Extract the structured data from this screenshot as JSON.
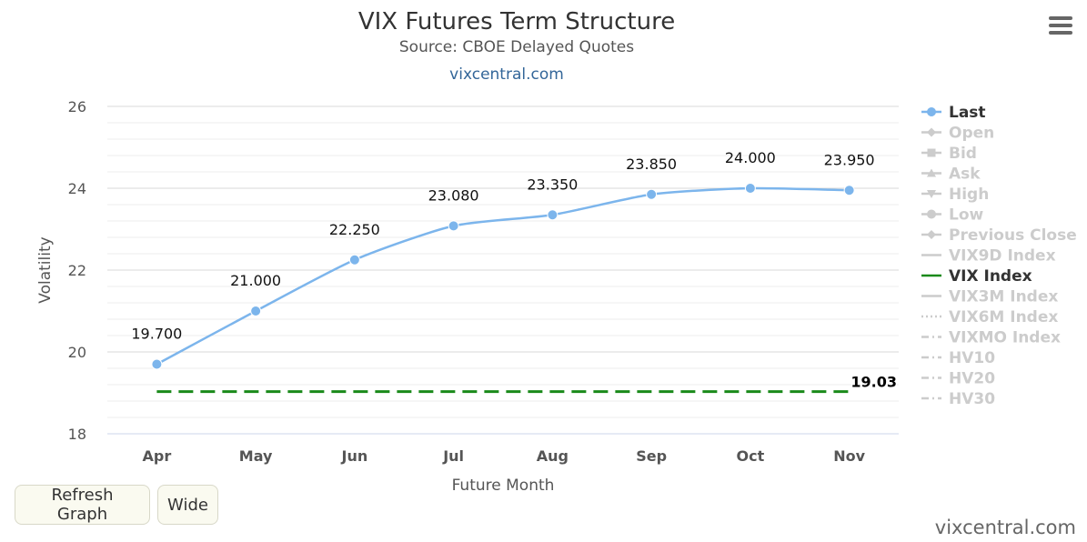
{
  "header": {
    "title": "VIX Futures Term Structure",
    "subtitle": "Source: CBOE Delayed Quotes",
    "link": "vixcentral.com"
  },
  "buttons": {
    "refresh": "Refresh Graph",
    "wide": "Wide"
  },
  "watermark": "vixcentral.com",
  "chart_data": {
    "type": "line",
    "xlabel": "Future Month",
    "ylabel": "Volatility",
    "categories": [
      "Apr",
      "May",
      "Jun",
      "Jul",
      "Aug",
      "Sep",
      "Oct",
      "Nov"
    ],
    "ylim": [
      18,
      26
    ],
    "yticks": [
      18,
      20,
      22,
      24,
      26
    ],
    "grid": true,
    "legend_position": "right",
    "series": [
      {
        "name": "Last",
        "color": "#7cb5ec",
        "values": [
          19.7,
          21.0,
          22.25,
          23.08,
          23.35,
          23.85,
          24.0,
          23.95
        ],
        "data_labels": [
          "19.700",
          "21.000",
          "22.250",
          "23.080",
          "23.350",
          "23.850",
          "24.000",
          "23.950"
        ]
      },
      {
        "name": "VIX Index",
        "color": "#1a8a1a",
        "value": 19.03,
        "data_label": "19.03"
      }
    ],
    "legend": [
      {
        "name": "Last",
        "active": true,
        "marker": "circle",
        "line": "solid"
      },
      {
        "name": "Open",
        "active": false,
        "marker": "diamond",
        "line": "solid"
      },
      {
        "name": "Bid",
        "active": false,
        "marker": "square",
        "line": "solid"
      },
      {
        "name": "Ask",
        "active": false,
        "marker": "triangle",
        "line": "solid"
      },
      {
        "name": "High",
        "active": false,
        "marker": "triangle-down",
        "line": "solid"
      },
      {
        "name": "Low",
        "active": false,
        "marker": "circle",
        "line": "solid"
      },
      {
        "name": "Previous Close",
        "active": false,
        "marker": "diamond",
        "line": "solid"
      },
      {
        "name": "VIX9D Index",
        "active": false,
        "marker": "none",
        "line": "solid"
      },
      {
        "name": "VIX Index",
        "active": true,
        "marker": "none",
        "line": "solid",
        "color": "#1a8a1a"
      },
      {
        "name": "VIX3M Index",
        "active": false,
        "marker": "none",
        "line": "solid"
      },
      {
        "name": "VIX6M Index",
        "active": false,
        "marker": "none",
        "line": "dotted"
      },
      {
        "name": "VIXMO Index",
        "active": false,
        "marker": "none",
        "line": "dashdot"
      },
      {
        "name": "HV10",
        "active": false,
        "marker": "none",
        "line": "dashdot"
      },
      {
        "name": "HV20",
        "active": false,
        "marker": "none",
        "line": "dashdot"
      },
      {
        "name": "HV30",
        "active": false,
        "marker": "none",
        "line": "dashdot"
      }
    ]
  }
}
